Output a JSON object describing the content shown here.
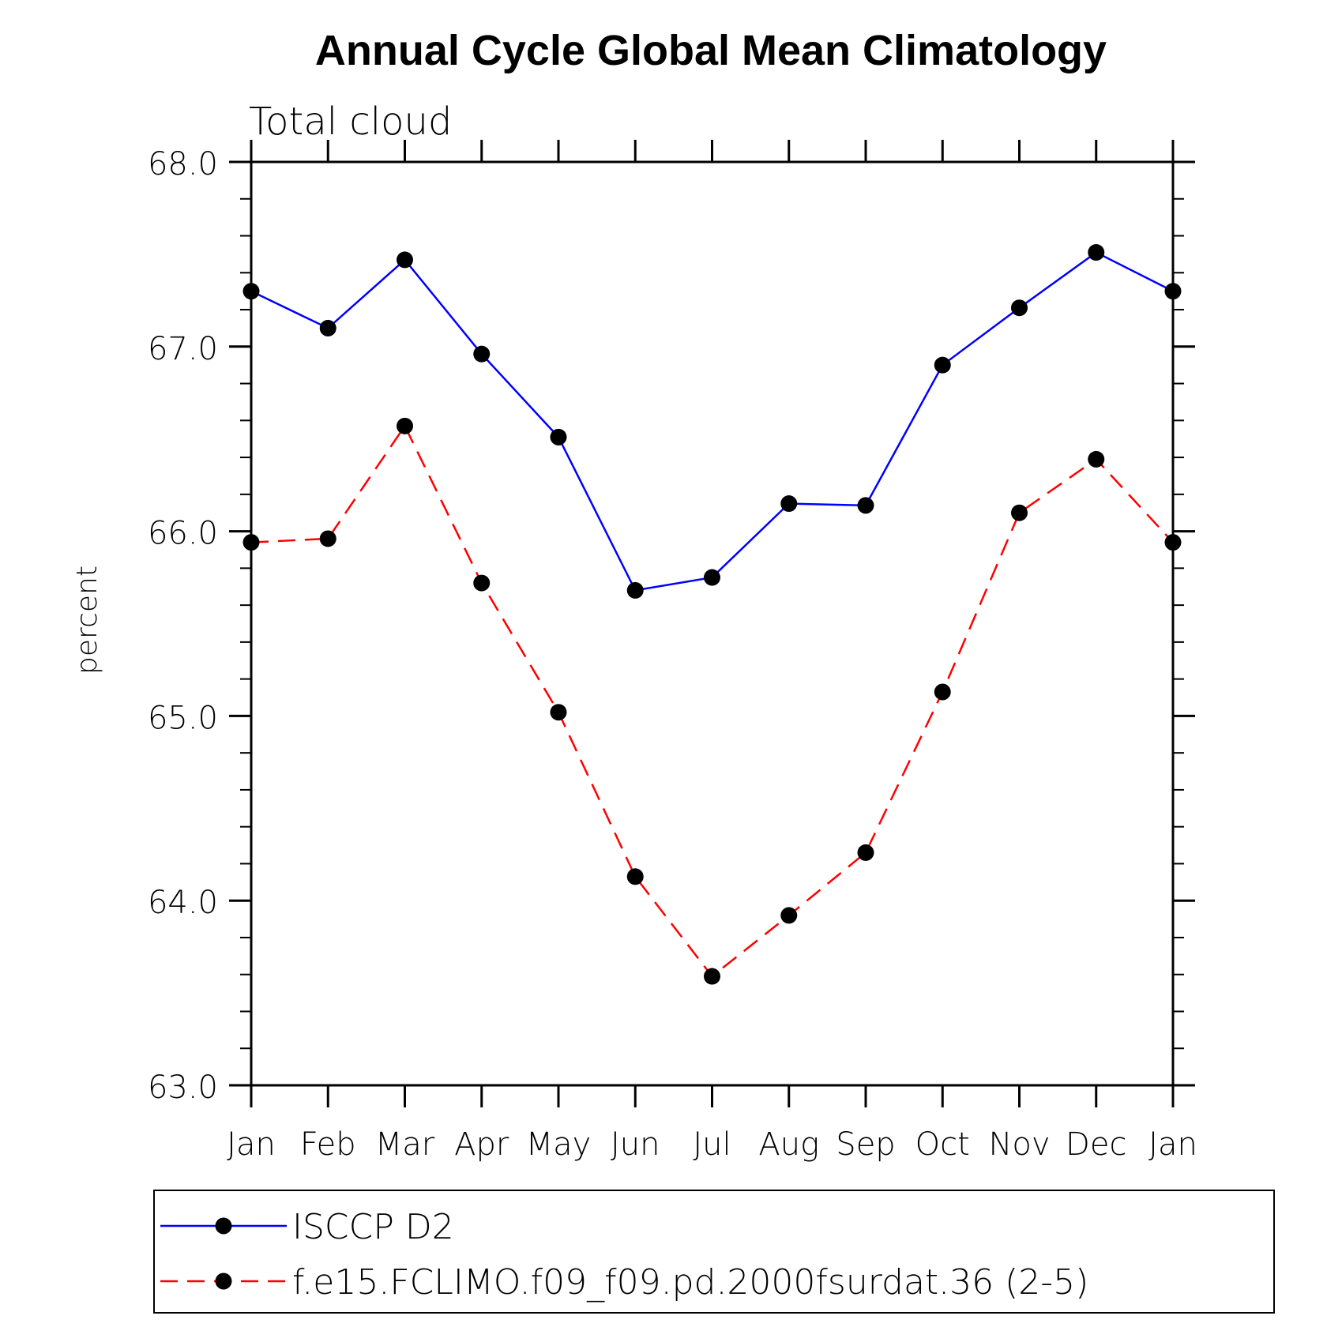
{
  "chart_data": {
    "type": "line",
    "title": "Annual Cycle Global Mean Climatology",
    "subtitle": "Total cloud",
    "xlabel": "",
    "ylabel": "percent",
    "ylim": [
      63.0,
      68.0
    ],
    "yticks": [
      "63.0",
      "64.0",
      "65.0",
      "66.0",
      "67.0",
      "68.0"
    ],
    "categories": [
      "Jan",
      "Feb",
      "Mar",
      "Apr",
      "May",
      "Jun",
      "Jul",
      "Aug",
      "Sep",
      "Oct",
      "Nov",
      "Dec",
      "Jan"
    ],
    "series": [
      {
        "name": "ISCCP D2",
        "color": "#0000ff",
        "dash": "solid",
        "values": [
          67.3,
          67.1,
          67.47,
          66.96,
          66.51,
          65.68,
          65.75,
          66.15,
          66.14,
          66.9,
          67.21,
          67.51,
          67.3
        ]
      },
      {
        "name": "f.e15.FCLIMO.f09_f09.pd.2000fsurdat.36 (2-5)",
        "color": "#ff0000",
        "dash": "dashed",
        "values": [
          65.94,
          65.96,
          66.57,
          65.72,
          65.02,
          64.13,
          63.59,
          63.92,
          64.26,
          65.13,
          66.1,
          66.39,
          65.94
        ]
      }
    ],
    "marker": "filled-circle",
    "grid": false,
    "legend_position": "bottom"
  }
}
